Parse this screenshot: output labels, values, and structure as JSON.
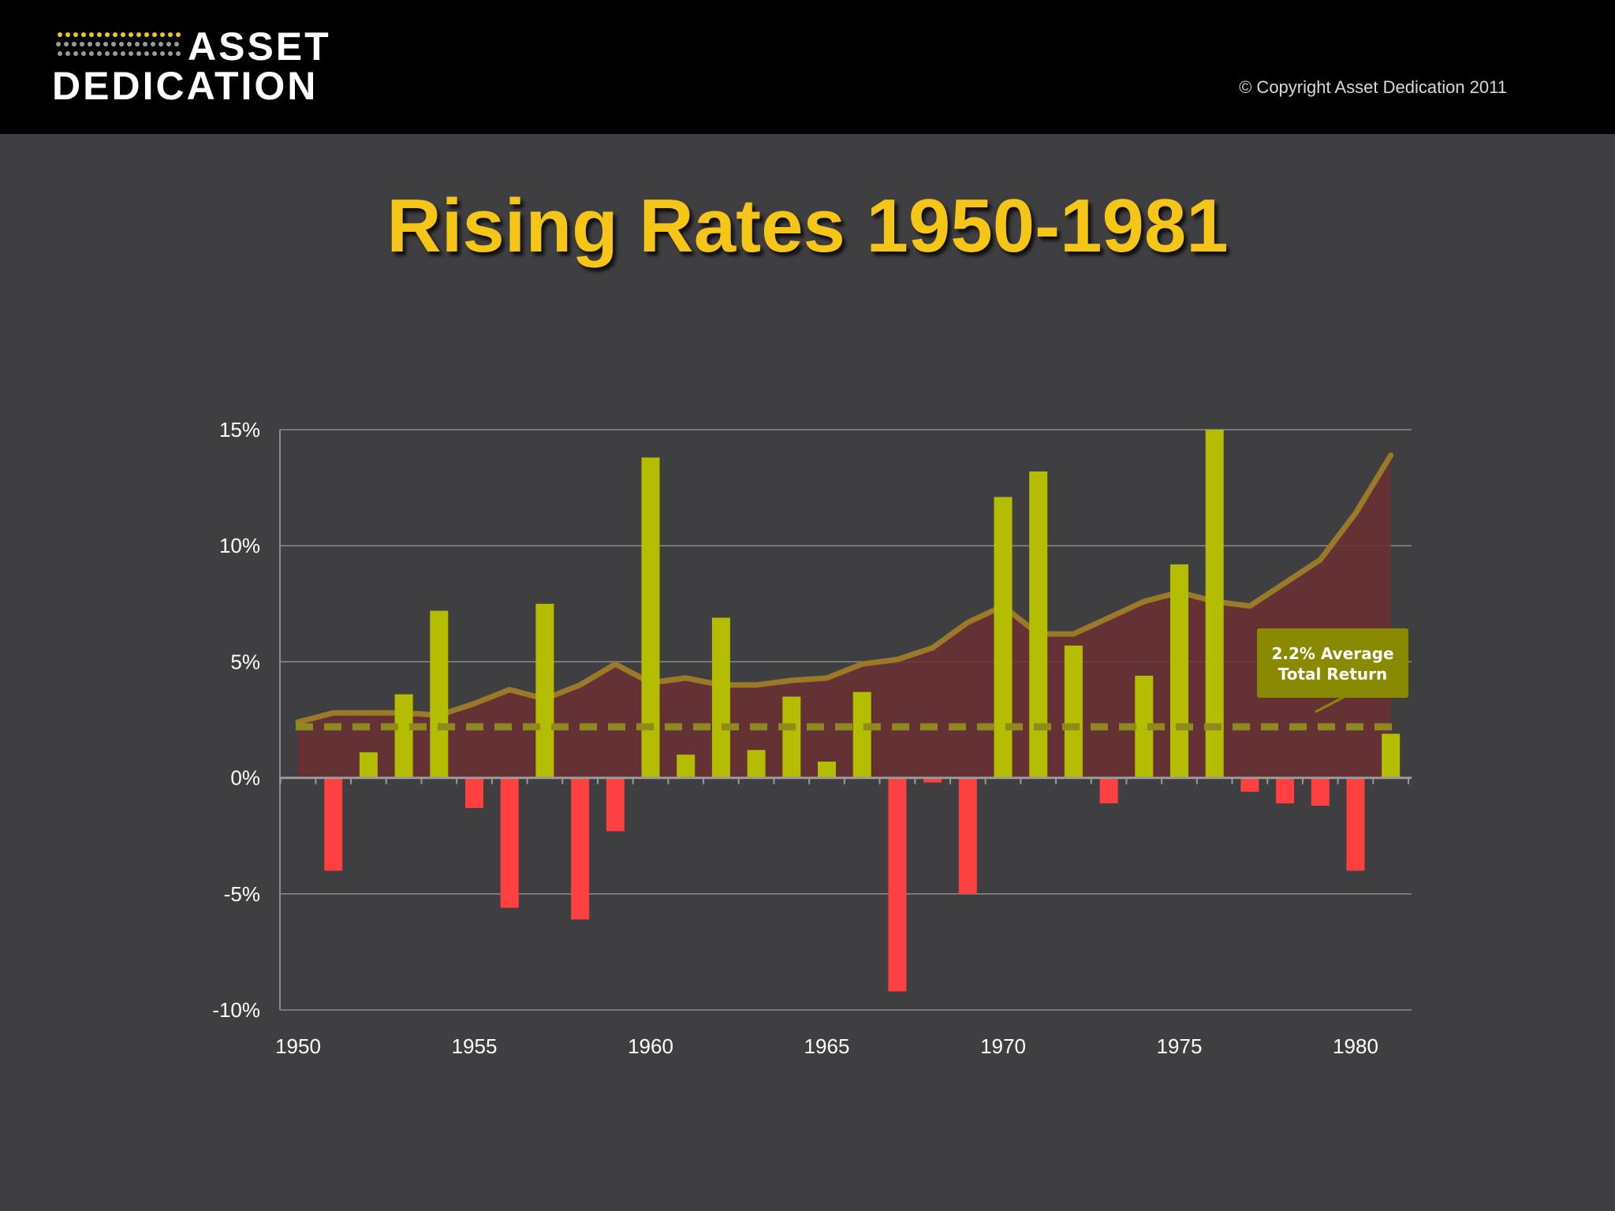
{
  "header": {
    "logo_line1": "ASSET",
    "logo_line2": "DEDICATION",
    "copyright": "© Copyright Asset Dedication 2011"
  },
  "colors": {
    "positive_bar": "#b5bd00",
    "negative_bar": "#ff4040",
    "yield_area": "#6b3034",
    "yield_line": "#9a7a28",
    "average_line": "#8f8a1f",
    "title": "#f5c518"
  },
  "chart_data": {
    "type": "bar",
    "title": "Rising Rates 1950-1981",
    "x": [
      1950,
      1951,
      1952,
      1953,
      1954,
      1955,
      1956,
      1957,
      1958,
      1959,
      1960,
      1961,
      1962,
      1963,
      1964,
      1965,
      1966,
      1967,
      1968,
      1969,
      1970,
      1971,
      1972,
      1973,
      1974,
      1975,
      1976,
      1977,
      1978,
      1979,
      1980,
      1981
    ],
    "x_ticks": [
      "1950",
      "1955",
      "1960",
      "1965",
      "1970",
      "1975",
      "1980"
    ],
    "y_ticks": [
      "15%",
      "10%",
      "5%",
      "0%",
      "-5%",
      "-10%"
    ],
    "ylim": [
      -10,
      15
    ],
    "series": [
      {
        "type": "bar",
        "values": [
          0.0,
          -4.0,
          1.1,
          3.6,
          7.2,
          -1.3,
          -5.6,
          7.5,
          -6.1,
          -2.3,
          13.8,
          1.0,
          6.9,
          1.2,
          3.5,
          0.7,
          3.7,
          -9.2,
          -0.2,
          -5.0,
          12.1,
          13.2,
          5.7,
          -1.1,
          4.4,
          9.2,
          15.0,
          -0.6,
          -1.1,
          -1.2,
          -4.0,
          1.9
        ]
      },
      {
        "type": "area",
        "values": [
          2.4,
          2.8,
          2.8,
          2.8,
          2.7,
          3.2,
          3.8,
          3.4,
          4.0,
          4.9,
          4.1,
          4.3,
          4.0,
          4.0,
          4.2,
          4.3,
          4.9,
          5.1,
          5.6,
          6.7,
          7.4,
          6.2,
          6.2,
          6.9,
          7.6,
          8.0,
          7.6,
          7.4,
          8.4,
          9.4,
          11.4,
          13.9
        ]
      }
    ],
    "average": {
      "value": 2.2,
      "label_line1": "2.2% Average",
      "label_line2": "Total Return"
    }
  }
}
